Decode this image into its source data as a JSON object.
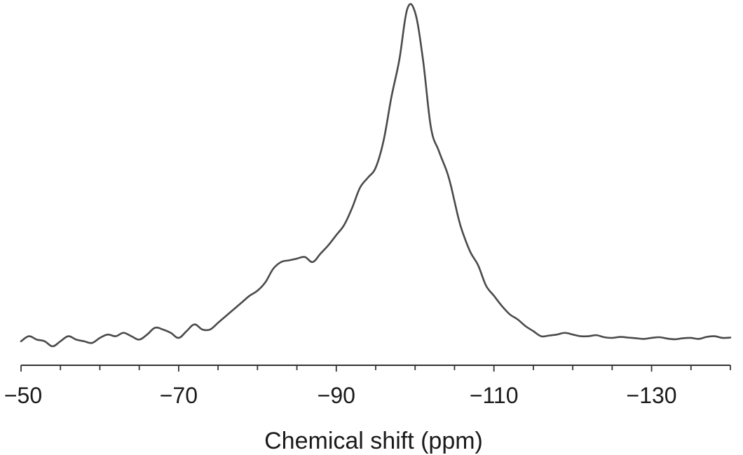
{
  "chart_data": {
    "type": "line",
    "title": "",
    "xlabel": "Chemical shift (ppm)",
    "ylabel": "",
    "xlim": [
      -50,
      -140
    ],
    "ylim": [
      0,
      100
    ],
    "x_reversed": true,
    "grid": false,
    "y_axis_visible": false,
    "major_ticks": [
      -50,
      -70,
      -90,
      -110,
      -130
    ],
    "tick_labels": [
      "−50",
      "−70",
      "−90",
      "−110",
      "−130"
    ],
    "minor_tick_step": 5,
    "line_color": "#4a4a4a",
    "series": [
      {
        "x": [
          -50,
          -51,
          -52,
          -53,
          -54,
          -55,
          -56,
          -57,
          -58,
          -59,
          -60,
          -61,
          -62,
          -63,
          -64,
          -65,
          -66,
          -67,
          -68,
          -69,
          -70,
          -71,
          -72,
          -73,
          -74,
          -75,
          -76,
          -77,
          -78,
          -79,
          -80,
          -81,
          -82,
          -83,
          -84,
          -85,
          -86,
          -87,
          -88,
          -89,
          -90,
          -91,
          -92,
          -93,
          -94,
          -95,
          -96,
          -97,
          -98,
          -99,
          -100,
          -101,
          -102,
          -103,
          -104,
          -104.5,
          -105,
          -105.5,
          -106,
          -107,
          -108,
          -109,
          -110,
          -111,
          -112,
          -113,
          -114,
          -115,
          -116,
          -117,
          -118,
          -119,
          -120,
          -121,
          -122,
          -123,
          -124,
          -125,
          -126,
          -127,
          -128,
          -129,
          -130,
          -131,
          -132,
          -133,
          -134,
          -135,
          -136,
          -137,
          -138,
          -139,
          -140
        ],
        "y": [
          1.5,
          3,
          2,
          1.5,
          0,
          1.5,
          3,
          2,
          1.5,
          1,
          2.5,
          3.5,
          3,
          4,
          3,
          2,
          3.5,
          5.5,
          5,
          4,
          2.5,
          4.5,
          6.5,
          5,
          5,
          7,
          9,
          11,
          13,
          15,
          16.5,
          19,
          23,
          25,
          25.5,
          26,
          26.5,
          25,
          27.5,
          30,
          33,
          36,
          41,
          47,
          50,
          53,
          61,
          74,
          85,
          100,
          99,
          85,
          65,
          58,
          52,
          48,
          43,
          38,
          34,
          28,
          24,
          18,
          15,
          12,
          9.5,
          8,
          6,
          4.5,
          3,
          3.2,
          3.5,
          4,
          3.5,
          3,
          3,
          3.3,
          2.7,
          2.5,
          2.8,
          2.6,
          2.4,
          2.2,
          2.5,
          2.7,
          2.3,
          2.1,
          2.4,
          2.5,
          2.2,
          2.8,
          3,
          2.5,
          2.6
        ]
      }
    ]
  }
}
